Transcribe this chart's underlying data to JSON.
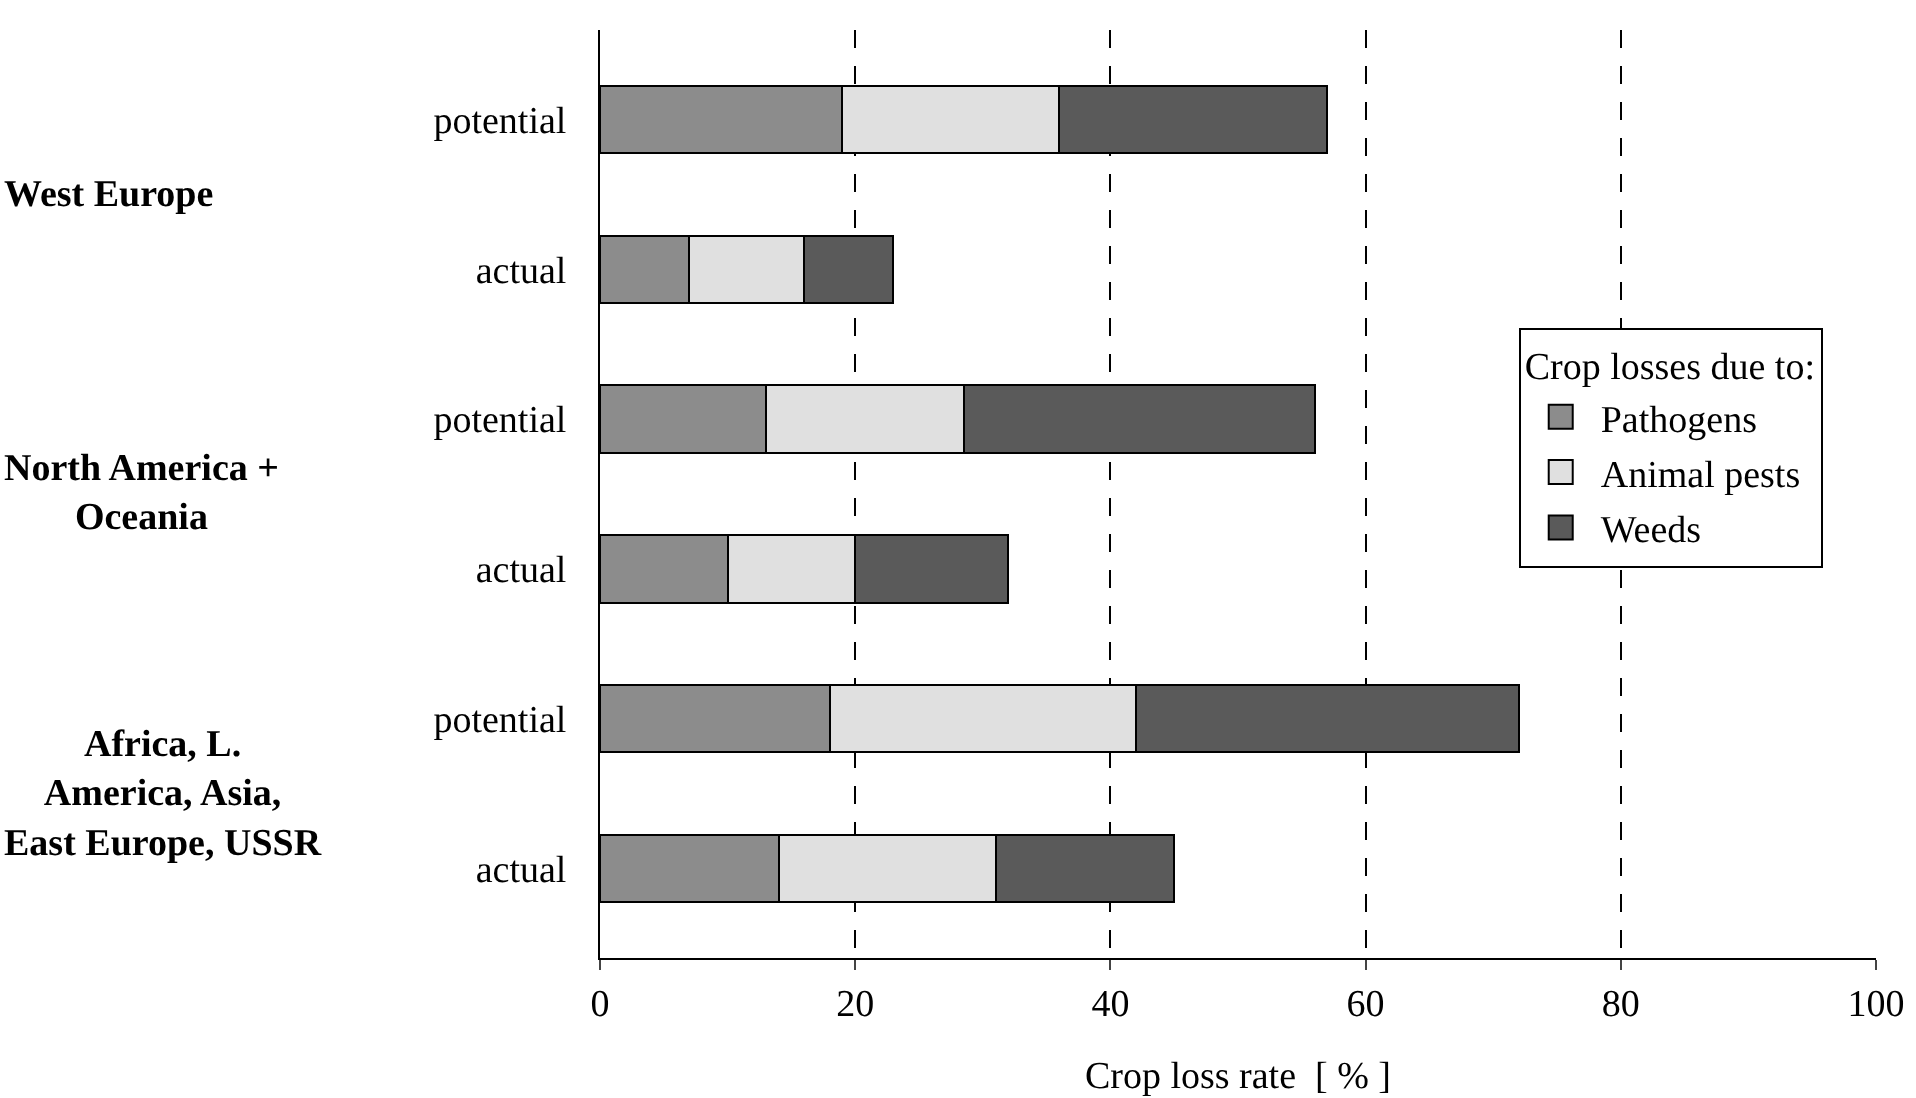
{
  "chart_data": {
    "type": "bar",
    "orientation": "horizontal",
    "stacked": true,
    "categories": [
      "potential",
      "actual",
      "potential",
      "actual",
      "potential",
      "actual"
    ],
    "series": [
      {
        "name": "Pathogens",
        "color": "#8c8c8c",
        "values": [
          19,
          7,
          13,
          10,
          18,
          14
        ]
      },
      {
        "name": "Animal pests",
        "color": "#e0e0e0",
        "values": [
          17,
          9,
          15.5,
          10,
          24,
          17
        ]
      },
      {
        "name": "Weeds",
        "color": "#5a5a5a",
        "values": [
          21,
          7,
          27.5,
          12,
          30,
          14
        ]
      }
    ],
    "xlabel": "Crop loss rate  [ % ]",
    "legend_title": "Crop losses due to:",
    "annotations": [
      "West Europe",
      "North America + Oceania",
      "Africa, L. America, Asia, East Europe, USSR"
    ],
    "xlim": [
      0,
      100
    ],
    "xticks": [
      0,
      20,
      40,
      60,
      80,
      100
    ],
    "grid": "x",
    "legend": "right"
  }
}
